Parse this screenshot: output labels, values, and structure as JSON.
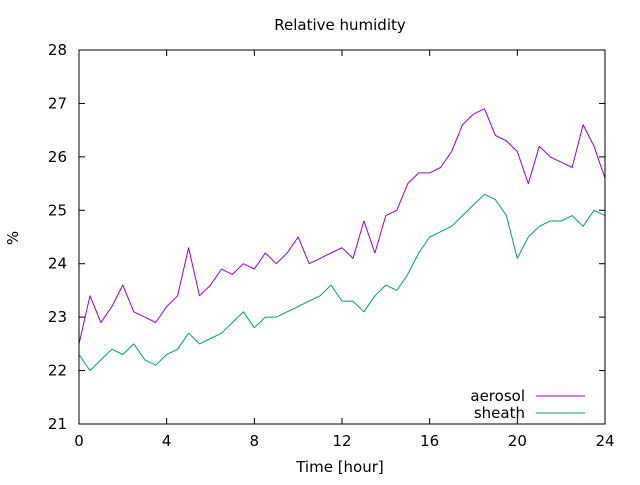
{
  "chart_data": {
    "type": "line",
    "title": "Relative humidity",
    "xlabel": "Time [hour]",
    "ylabel": "%",
    "xlim": [
      0,
      24
    ],
    "ylim": [
      21,
      28
    ],
    "x_ticks": [
      0,
      4,
      8,
      12,
      16,
      20,
      24
    ],
    "y_ticks": [
      21,
      22,
      23,
      24,
      25,
      26,
      27,
      28
    ],
    "grid": false,
    "legend_position": "bottom-right",
    "series": [
      {
        "name": "aerosol",
        "color": "#9400d3",
        "x": [
          0.0,
          0.5,
          1.0,
          1.5,
          2.0,
          2.5,
          3.0,
          3.5,
          4.0,
          4.5,
          5.0,
          5.5,
          6.0,
          6.5,
          7.0,
          7.5,
          8.0,
          8.5,
          9.0,
          9.5,
          10.0,
          10.5,
          11.0,
          11.5,
          12.0,
          12.5,
          13.0,
          13.5,
          14.0,
          14.5,
          15.0,
          15.5,
          16.0,
          16.5,
          17.0,
          17.5,
          18.0,
          18.5,
          19.0,
          19.5,
          20.0,
          20.5,
          21.0,
          21.5,
          22.0,
          22.5,
          23.0,
          23.5,
          24.0
        ],
        "y": [
          22.5,
          23.4,
          22.9,
          23.2,
          23.6,
          23.1,
          23.0,
          22.9,
          23.2,
          23.4,
          24.3,
          23.4,
          23.6,
          23.9,
          23.8,
          24.0,
          23.9,
          24.2,
          24.0,
          24.2,
          24.5,
          24.0,
          24.1,
          24.2,
          24.3,
          24.1,
          24.8,
          24.2,
          24.9,
          25.0,
          25.5,
          25.7,
          25.7,
          25.8,
          26.1,
          26.6,
          26.8,
          26.9,
          26.4,
          26.3,
          26.1,
          25.5,
          26.2,
          26.0,
          25.9,
          25.8,
          26.6,
          26.2,
          25.6
        ]
      },
      {
        "name": "sheath",
        "color": "#009e73",
        "x": [
          0.0,
          0.5,
          1.0,
          1.5,
          2.0,
          2.5,
          3.0,
          3.5,
          4.0,
          4.5,
          5.0,
          5.5,
          6.0,
          6.5,
          7.0,
          7.5,
          8.0,
          8.5,
          9.0,
          9.5,
          10.0,
          10.5,
          11.0,
          11.5,
          12.0,
          12.5,
          13.0,
          13.5,
          14.0,
          14.5,
          15.0,
          15.5,
          16.0,
          16.5,
          17.0,
          17.5,
          18.0,
          18.5,
          19.0,
          19.5,
          20.0,
          20.5,
          21.0,
          21.5,
          22.0,
          22.5,
          23.0,
          23.5,
          24.0
        ],
        "y": [
          22.3,
          22.0,
          22.2,
          22.4,
          22.3,
          22.5,
          22.2,
          22.1,
          22.3,
          22.4,
          22.7,
          22.5,
          22.6,
          22.7,
          22.9,
          23.1,
          22.8,
          23.0,
          23.0,
          23.1,
          23.2,
          23.3,
          23.4,
          23.6,
          23.3,
          23.3,
          23.1,
          23.4,
          23.6,
          23.5,
          23.8,
          24.2,
          24.5,
          24.6,
          24.7,
          24.9,
          25.1,
          25.3,
          25.2,
          24.9,
          24.1,
          24.5,
          24.7,
          24.8,
          24.8,
          24.9,
          24.7,
          25.0,
          24.9
        ]
      }
    ]
  }
}
